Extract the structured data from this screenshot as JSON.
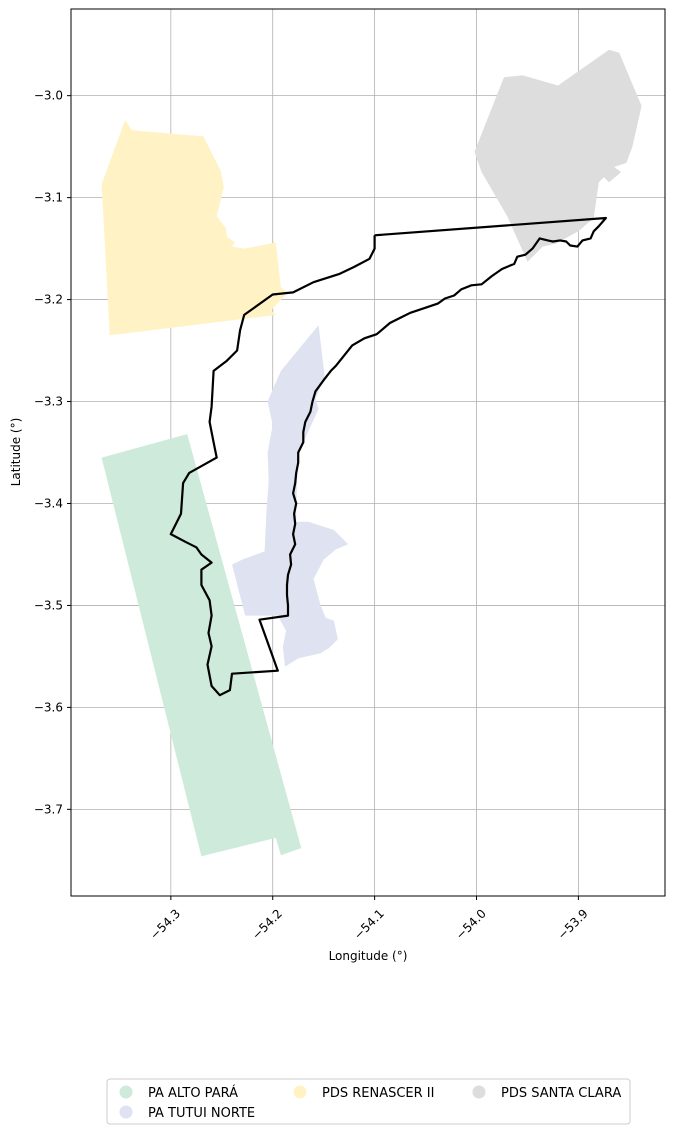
{
  "axes": {
    "xlabel": "Longitude (°)",
    "ylabel": "Latitude (°)",
    "xlim": [
      -54.398,
      -53.815
    ],
    "ylim": [
      -3.785,
      -2.915
    ],
    "xticks": [
      {
        "value": -54.3,
        "label": "−54.3"
      },
      {
        "value": -54.2,
        "label": "−54.2"
      },
      {
        "value": -54.1,
        "label": "−54.1"
      },
      {
        "value": -54.0,
        "label": "−54.0"
      },
      {
        "value": -53.9,
        "label": "−53.9"
      }
    ],
    "yticks": [
      {
        "value": -3.0,
        "label": "−3.0"
      },
      {
        "value": -3.1,
        "label": "−3.1"
      },
      {
        "value": -3.2,
        "label": "−3.2"
      },
      {
        "value": -3.3,
        "label": "−3.3"
      },
      {
        "value": -3.4,
        "label": "−3.4"
      },
      {
        "value": -3.5,
        "label": "−3.5"
      },
      {
        "value": -3.6,
        "label": "−3.6"
      },
      {
        "value": -3.7,
        "label": "−3.7"
      }
    ],
    "grid": true
  },
  "areas": [
    {
      "name": "PA ALTO PARÁ",
      "color": "#cdeadb",
      "coords": [
        [
          -54.368,
          -3.355
        ],
        [
          -54.284,
          -3.332
        ],
        [
          -54.172,
          -3.738
        ],
        [
          -54.192,
          -3.745
        ],
        [
          -54.197,
          -3.728
        ],
        [
          -54.27,
          -3.746
        ]
      ]
    },
    {
      "name": "PA TUTUI NORTE",
      "color": "#dfe2f0",
      "coords": [
        [
          -54.155,
          -3.225
        ],
        [
          -54.149,
          -3.276
        ],
        [
          -54.158,
          -3.297
        ],
        [
          -54.155,
          -3.307
        ],
        [
          -54.164,
          -3.327
        ],
        [
          -54.174,
          -3.349
        ],
        [
          -54.176,
          -3.375
        ],
        [
          -54.177,
          -3.408
        ],
        [
          -54.177,
          -3.418
        ],
        [
          -54.17,
          -3.418
        ],
        [
          -54.165,
          -3.418
        ],
        [
          -54.14,
          -3.426
        ],
        [
          -54.126,
          -3.44
        ],
        [
          -54.138,
          -3.445
        ],
        [
          -54.15,
          -3.455
        ],
        [
          -54.16,
          -3.474
        ],
        [
          -54.153,
          -3.5
        ],
        [
          -54.148,
          -3.512
        ],
        [
          -54.14,
          -3.515
        ],
        [
          -54.136,
          -3.533
        ],
        [
          -54.145,
          -3.542
        ],
        [
          -54.153,
          -3.547
        ],
        [
          -54.175,
          -3.552
        ],
        [
          -54.188,
          -3.56
        ],
        [
          -54.19,
          -3.54
        ],
        [
          -54.187,
          -3.525
        ],
        [
          -54.195,
          -3.51
        ],
        [
          -54.227,
          -3.51
        ],
        [
          -54.24,
          -3.46
        ],
        [
          -54.23,
          -3.455
        ],
        [
          -54.208,
          -3.447
        ],
        [
          -54.206,
          -3.405
        ],
        [
          -54.204,
          -3.378
        ],
        [
          -54.205,
          -3.35
        ],
        [
          -54.2,
          -3.323
        ],
        [
          -54.205,
          -3.3
        ],
        [
          -54.192,
          -3.27
        ]
      ]
    },
    {
      "name": "PDS RENASCER II",
      "color": "#fff3c6",
      "coords": [
        [
          -54.345,
          -3.024
        ],
        [
          -54.338,
          -3.034
        ],
        [
          -54.268,
          -3.04
        ],
        [
          -54.251,
          -3.074
        ],
        [
          -54.248,
          -3.09
        ],
        [
          -54.255,
          -3.118
        ],
        [
          -54.246,
          -3.13
        ],
        [
          -54.245,
          -3.138
        ],
        [
          -54.237,
          -3.144
        ],
        [
          -54.24,
          -3.148
        ],
        [
          -54.228,
          -3.15
        ],
        [
          -54.197,
          -3.144
        ],
        [
          -54.192,
          -3.188
        ],
        [
          -54.185,
          -3.193
        ],
        [
          -54.202,
          -3.211
        ],
        [
          -54.196,
          -3.215
        ],
        [
          -54.36,
          -3.235
        ],
        [
          -54.368,
          -3.087
        ]
      ]
    },
    {
      "name": "PDS SANTA CLARA",
      "color": "#dddddd",
      "coords": [
        [
          -53.973,
          -2.982
        ],
        [
          -53.955,
          -2.98
        ],
        [
          -53.92,
          -2.99
        ],
        [
          -53.87,
          -2.955
        ],
        [
          -53.86,
          -2.958
        ],
        [
          -53.838,
          -3.01
        ],
        [
          -53.847,
          -3.05
        ],
        [
          -53.853,
          -3.066
        ],
        [
          -53.865,
          -3.07
        ],
        [
          -53.858,
          -3.075
        ],
        [
          -53.87,
          -3.085
        ],
        [
          -53.875,
          -3.08
        ],
        [
          -53.88,
          -3.085
        ],
        [
          -53.885,
          -3.12
        ],
        [
          -53.9,
          -3.133
        ],
        [
          -53.922,
          -3.145
        ],
        [
          -53.935,
          -3.148
        ],
        [
          -53.95,
          -3.163
        ],
        [
          -53.97,
          -3.118
        ],
        [
          -53.995,
          -3.075
        ],
        [
          -54.002,
          -3.055
        ]
      ]
    }
  ],
  "boundary": {
    "color": "#000000",
    "coords": [
      [
        -54.1,
        -3.137
      ],
      [
        -53.873,
        -3.12
      ],
      [
        -53.88,
        -3.128
      ],
      [
        -53.885,
        -3.133
      ],
      [
        -53.888,
        -3.14
      ],
      [
        -53.896,
        -3.142
      ],
      [
        -53.901,
        -3.148
      ],
      [
        -53.908,
        -3.147
      ],
      [
        -53.912,
        -3.143
      ],
      [
        -53.918,
        -3.142
      ],
      [
        -53.925,
        -3.143
      ],
      [
        -53.93,
        -3.142
      ],
      [
        -53.938,
        -3.14
      ],
      [
        -53.945,
        -3.15
      ],
      [
        -53.952,
        -3.156
      ],
      [
        -53.96,
        -3.158
      ],
      [
        -53.963,
        -3.165
      ],
      [
        -53.975,
        -3.17
      ],
      [
        -53.985,
        -3.177
      ],
      [
        -53.995,
        -3.185
      ],
      [
        -54.005,
        -3.186
      ],
      [
        -54.015,
        -3.19
      ],
      [
        -54.022,
        -3.196
      ],
      [
        -54.031,
        -3.199
      ],
      [
        -54.038,
        -3.204
      ],
      [
        -54.05,
        -3.208
      ],
      [
        -54.065,
        -3.213
      ],
      [
        -54.075,
        -3.218
      ],
      [
        -54.085,
        -3.223
      ],
      [
        -54.092,
        -3.229
      ],
      [
        -54.098,
        -3.234
      ],
      [
        -54.11,
        -3.238
      ],
      [
        -54.122,
        -3.245
      ],
      [
        -54.13,
        -3.255
      ],
      [
        -54.138,
        -3.265
      ],
      [
        -54.143,
        -3.27
      ],
      [
        -54.15,
        -3.279
      ],
      [
        -54.158,
        -3.29
      ],
      [
        -54.161,
        -3.3
      ],
      [
        -54.163,
        -3.31
      ],
      [
        -54.168,
        -3.32
      ],
      [
        -54.17,
        -3.33
      ],
      [
        -54.17,
        -3.34
      ],
      [
        -54.175,
        -3.35
      ],
      [
        -54.175,
        -3.36
      ],
      [
        -54.177,
        -3.37
      ],
      [
        -54.178,
        -3.38
      ],
      [
        -54.18,
        -3.39
      ],
      [
        -54.177,
        -3.4
      ],
      [
        -54.179,
        -3.41
      ],
      [
        -54.178,
        -3.42
      ],
      [
        -54.18,
        -3.43
      ],
      [
        -54.178,
        -3.44
      ],
      [
        -54.183,
        -3.45
      ],
      [
        -54.182,
        -3.46
      ],
      [
        -54.185,
        -3.47
      ],
      [
        -54.186,
        -3.48
      ],
      [
        -54.186,
        -3.49
      ],
      [
        -54.185,
        -3.5
      ],
      [
        -54.185,
        -3.51
      ],
      [
        -54.213,
        -3.514
      ],
      [
        -54.195,
        -3.564
      ],
      [
        -54.24,
        -3.567
      ],
      [
        -54.242,
        -3.583
      ],
      [
        -54.252,
        -3.588
      ],
      [
        -54.26,
        -3.579
      ],
      [
        -54.264,
        -3.558
      ],
      [
        -54.26,
        -3.54
      ],
      [
        -54.263,
        -3.527
      ],
      [
        -54.26,
        -3.51
      ],
      [
        -54.262,
        -3.495
      ],
      [
        -54.27,
        -3.48
      ],
      [
        -54.27,
        -3.465
      ],
      [
        -54.26,
        -3.458
      ],
      [
        -54.27,
        -3.45
      ],
      [
        -54.275,
        -3.443
      ],
      [
        -54.285,
        -3.438
      ],
      [
        -54.3,
        -3.43
      ],
      [
        -54.29,
        -3.41
      ],
      [
        -54.288,
        -3.38
      ],
      [
        -54.282,
        -3.37
      ],
      [
        -54.255,
        -3.355
      ],
      [
        -54.258,
        -3.34
      ],
      [
        -54.262,
        -3.32
      ],
      [
        -54.26,
        -3.305
      ],
      [
        -54.258,
        -3.27
      ],
      [
        -54.245,
        -3.26
      ],
      [
        -54.235,
        -3.25
      ],
      [
        -54.232,
        -3.23
      ],
      [
        -54.228,
        -3.215
      ],
      [
        -54.2,
        -3.195
      ],
      [
        -54.18,
        -3.193
      ],
      [
        -54.16,
        -3.183
      ],
      [
        -54.135,
        -3.175
      ],
      [
        -54.12,
        -3.168
      ],
      [
        -54.105,
        -3.16
      ],
      [
        -54.1,
        -3.15
      ],
      [
        -54.1,
        -3.137
      ]
    ]
  },
  "legend": {
    "items": [
      {
        "label": "PA ALTO PARÁ",
        "color": "#cdeadb"
      },
      {
        "label": "PA TUTUI NORTE",
        "color": "#dfe2f0"
      },
      {
        "label": "PDS RENASCER II",
        "color": "#fff3c6"
      },
      {
        "label": "PDS SANTA CLARA",
        "color": "#dddddd"
      }
    ]
  }
}
